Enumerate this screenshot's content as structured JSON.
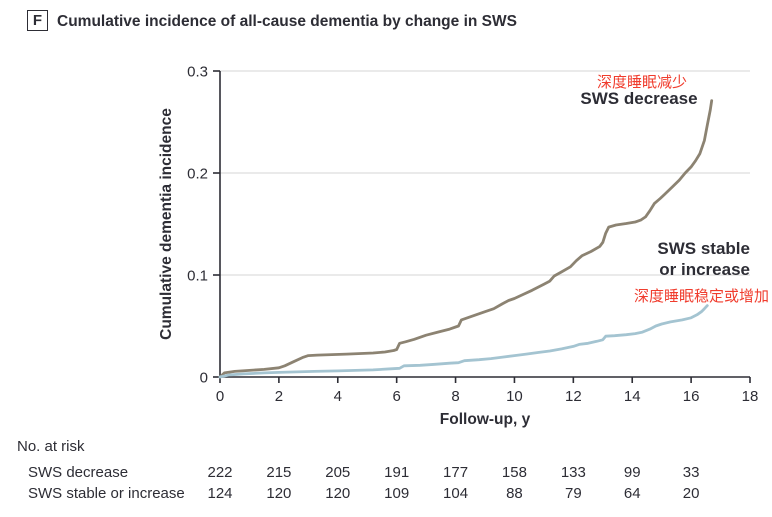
{
  "header": {
    "panel_label": "F",
    "title": "Cumulative incidence of all-cause dementia by change in SWS"
  },
  "colors": {
    "sws_decrease_line": "#8c8372",
    "sws_stable_line": "#a4c4d1",
    "annotation_red": "#f03c2d",
    "axis_text": "#2d2d35",
    "gridline": "#e3e3e3",
    "background": "#ffffff"
  },
  "chart_data": {
    "type": "line",
    "title": "Cumulative incidence of all-cause dementia by change in SWS",
    "xlabel": "Follow-up, y",
    "ylabel": "Cumulative dementia incidence",
    "xlim": [
      0,
      18
    ],
    "ylim": [
      0,
      0.3
    ],
    "xticks": [
      0,
      2,
      4,
      6,
      8,
      10,
      12,
      14,
      16,
      18
    ],
    "yticks": [
      0,
      0.1,
      0.2,
      0.3
    ],
    "ytick_labels": [
      "0",
      "0.1",
      "0.2",
      "0.3"
    ],
    "grid": "horizontal y gridlines at 0.1, 0.2, 0.3",
    "legend_position": "inline annotations on plot",
    "series": [
      {
        "name": "SWS decrease",
        "label_cn": "深度睡眠减少",
        "color": "#8c8372",
        "x": [
          0,
          0.15,
          0.5,
          1,
          1.5,
          2,
          2.2,
          2.5,
          2.8,
          3,
          3.3,
          3.8,
          4.3,
          4.8,
          5.2,
          5.6,
          5.9,
          6.0,
          6.1,
          6.3,
          6.6,
          7,
          7.4,
          7.8,
          8,
          8.1,
          8.2,
          8.5,
          9,
          9.3,
          9.6,
          9.8,
          10,
          10.3,
          10.6,
          11,
          11.2,
          11.35,
          11.6,
          11.9,
          12.1,
          12.3,
          12.6,
          12.9,
          13,
          13.1,
          13.2,
          13.45,
          13.8,
          14.1,
          14.3,
          14.45,
          14.6,
          14.75,
          14.95,
          15.1,
          15.35,
          15.6,
          15.8,
          16,
          16.15,
          16.3,
          16.45,
          16.55,
          16.65,
          16.7
        ],
        "y": [
          0,
          0.004,
          0.0055,
          0.0065,
          0.0075,
          0.009,
          0.011,
          0.015,
          0.019,
          0.021,
          0.0215,
          0.022,
          0.0225,
          0.023,
          0.0235,
          0.0245,
          0.026,
          0.027,
          0.033,
          0.0345,
          0.037,
          0.041,
          0.044,
          0.047,
          0.049,
          0.05,
          0.056,
          0.059,
          0.064,
          0.067,
          0.072,
          0.075,
          0.077,
          0.081,
          0.085,
          0.091,
          0.094,
          0.099,
          0.103,
          0.108,
          0.114,
          0.119,
          0.123,
          0.128,
          0.132,
          0.141,
          0.147,
          0.149,
          0.1505,
          0.152,
          0.154,
          0.157,
          0.163,
          0.17,
          0.175,
          0.179,
          0.186,
          0.193,
          0.2,
          0.206,
          0.212,
          0.219,
          0.232,
          0.247,
          0.262,
          0.271
        ]
      },
      {
        "name": "SWS stable or increase",
        "label_line1": "SWS stable",
        "label_line2": "or increase",
        "label_cn": "深度睡眠稳定或增加",
        "color": "#a4c4d1",
        "x": [
          0,
          0.3,
          0.8,
          1.5,
          2,
          2.6,
          3.2,
          4,
          4.6,
          5.2,
          5.8,
          6.1,
          6.25,
          6.8,
          7.3,
          7.8,
          8.1,
          8.3,
          8.8,
          9.2,
          9.6,
          10,
          10.4,
          10.8,
          11.2,
          11.6,
          12,
          12.2,
          12.5,
          12.8,
          13,
          13.1,
          13.4,
          13.8,
          14.1,
          14.35,
          14.6,
          14.8,
          15,
          15.3,
          15.7,
          16,
          16.2,
          16.35,
          16.45,
          16.55
        ],
        "y": [
          0,
          0.002,
          0.003,
          0.004,
          0.0045,
          0.005,
          0.0055,
          0.006,
          0.0065,
          0.007,
          0.008,
          0.0085,
          0.011,
          0.0115,
          0.0125,
          0.0135,
          0.014,
          0.016,
          0.017,
          0.018,
          0.0195,
          0.021,
          0.0225,
          0.024,
          0.0255,
          0.0275,
          0.03,
          0.032,
          0.033,
          0.035,
          0.0365,
          0.04,
          0.0405,
          0.0415,
          0.0425,
          0.044,
          0.047,
          0.05,
          0.052,
          0.054,
          0.056,
          0.058,
          0.061,
          0.064,
          0.067,
          0.07
        ]
      }
    ],
    "risk_table": {
      "title": "No. at risk",
      "time_points": [
        0,
        2,
        4,
        6,
        8,
        10,
        12,
        14,
        16
      ],
      "rows": [
        {
          "label": "SWS decrease",
          "values": [
            222,
            215,
            205,
            191,
            177,
            158,
            133,
            99,
            33
          ]
        },
        {
          "label": "SWS stable or increase",
          "values": [
            124,
            120,
            120,
            109,
            104,
            88,
            79,
            64,
            20
          ]
        }
      ]
    }
  }
}
